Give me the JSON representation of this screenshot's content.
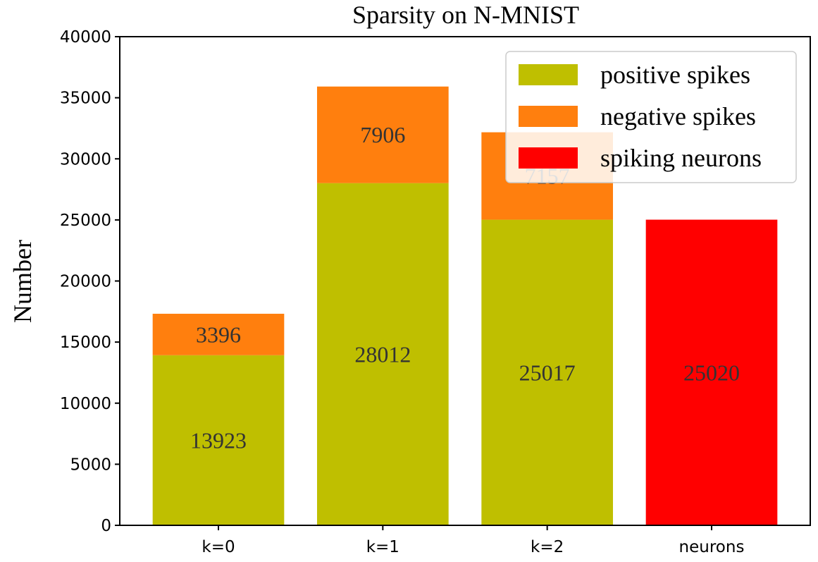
{
  "chart_data": {
    "type": "bar",
    "stacked": true,
    "title": "Sparsity on N-MNIST",
    "xlabel": "",
    "ylabel": "Number",
    "ylim": [
      0,
      40000
    ],
    "yticks": [
      0,
      5000,
      10000,
      15000,
      20000,
      25000,
      30000,
      35000,
      40000
    ],
    "ytick_labels": [
      "0",
      "5000",
      "10000",
      "15000",
      "20000",
      "25000",
      "30000",
      "35000",
      "40000"
    ],
    "categories": [
      "k=0",
      "k=1",
      "k=2",
      "neurons"
    ],
    "series": [
      {
        "name": "positive spikes",
        "color": "#bfbf00",
        "values": [
          13923,
          28012,
          25017,
          null
        ]
      },
      {
        "name": "negative spikes",
        "color": "#ff7f0e",
        "values": [
          3396,
          7906,
          7157,
          null
        ]
      },
      {
        "name": "spiking neurons",
        "color": "#ff0000",
        "values": [
          null,
          null,
          null,
          25020
        ]
      }
    ],
    "data_labels": [
      [
        "13923",
        "28012",
        "25017",
        ""
      ],
      [
        "3396",
        "7906",
        "7157",
        ""
      ],
      [
        "",
        "",
        "",
        "25020"
      ]
    ],
    "legend": {
      "position": "top-right"
    },
    "grid": false
  }
}
